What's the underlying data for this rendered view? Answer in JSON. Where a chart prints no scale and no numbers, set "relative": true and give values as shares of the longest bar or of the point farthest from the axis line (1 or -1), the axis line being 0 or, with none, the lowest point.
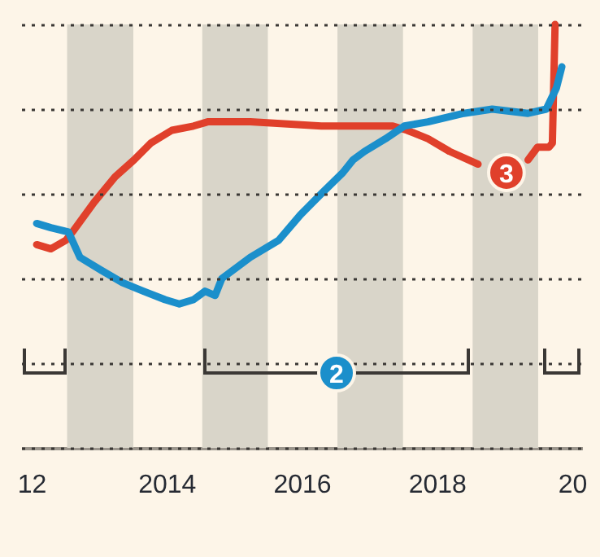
{
  "chart_data": {
    "type": "line",
    "relative": true,
    "xlim": [
      2011.85,
      2020.15
    ],
    "xticks": [
      {
        "value": 2012,
        "label": "12"
      },
      2014,
      2016,
      2018,
      {
        "value": 2020,
        "label": "20"
      }
    ],
    "grid": "y",
    "marker": "none",
    "line_style": "solid",
    "series": [
      {
        "color": "#e0402b",
        "x": [
          2012.08,
          2012.29,
          2012.51,
          2012.61,
          2012.93,
          2013.24,
          2013.52,
          2013.77,
          2014.08,
          2014.4,
          2014.61,
          2015.24,
          2016.29,
          2017.35,
          2017.56,
          2017.87,
          2018.19,
          2018.61,
          2018.93,
          2019.14,
          2019.35,
          2019.49,
          2019.66,
          2019.71,
          2019.75
        ],
        "values": [
          0.48,
          0.47,
          0.49,
          0.51,
          0.58,
          0.64,
          0.68,
          0.72,
          0.75,
          0.76,
          0.77,
          0.77,
          0.76,
          0.76,
          0.75,
          0.73,
          0.7,
          0.67,
          null,
          null,
          0.68,
          0.71,
          0.71,
          0.72,
          1.0
        ]
      },
      {
        "color": "#1b8fcb",
        "x": [
          2012.08,
          2012.29,
          2012.55,
          2012.72,
          2013.03,
          2013.35,
          2013.66,
          2013.98,
          2014.19,
          2014.4,
          2014.57,
          2014.72,
          2014.82,
          2015.24,
          2015.66,
          2015.98,
          2016.29,
          2016.61,
          2016.76,
          2016.93,
          2017.24,
          2017.52,
          2017.87,
          2018.4,
          2018.82,
          2019.35,
          2019.62,
          2019.77,
          2019.85
        ],
        "values": [
          0.53,
          0.52,
          0.51,
          0.45,
          0.42,
          0.39,
          0.37,
          0.35,
          0.34,
          0.35,
          0.37,
          0.36,
          0.4,
          0.45,
          0.49,
          0.55,
          0.6,
          0.65,
          0.68,
          0.7,
          0.73,
          0.76,
          0.77,
          0.79,
          0.8,
          0.79,
          0.8,
          0.85,
          0.9
        ]
      }
    ],
    "bands": [
      {
        "axis": "x",
        "from": 2012.53,
        "to": 2013.51,
        "color": "#d9d5c9"
      },
      {
        "axis": "x",
        "from": 2014.53,
        "to": 2015.5,
        "color": "#d9d5c9"
      },
      {
        "axis": "x",
        "from": 2016.53,
        "to": 2017.5,
        "color": "#d9d5c9"
      },
      {
        "axis": "x",
        "from": 2018.53,
        "to": 2019.5,
        "color": "#d9d5c9"
      }
    ],
    "annotations": [
      {
        "text": "3",
        "x": 2019.03,
        "y": 0.65
      },
      "2"
    ]
  }
}
